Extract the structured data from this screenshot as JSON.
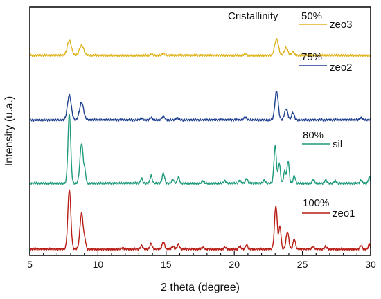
{
  "chart_data": {
    "type": "line",
    "title": "",
    "xlabel": "2 theta (degree)",
    "ylabel": "Intensity (u.a.)",
    "xlim": [
      5,
      30
    ],
    "x_ticks": [
      5,
      10,
      15,
      20,
      25,
      30
    ],
    "ylim": [
      0,
      100
    ],
    "legend_title": "Cristallinity",
    "legend_placement": "right, beside each curve",
    "grid": false,
    "y_ticks_shown": false,
    "series": [
      {
        "name": "zeo3",
        "crystallinity_label": "50%",
        "color": "#e0b41e",
        "baseline": 80.5,
        "peaks": [
          {
            "x": 7.9,
            "height": 6,
            "width": 0.15
          },
          {
            "x": 8.8,
            "height": 4,
            "width": 0.16
          },
          {
            "x": 13.9,
            "height": 0.5,
            "width": 0.1
          },
          {
            "x": 14.8,
            "height": 0.7,
            "width": 0.1
          },
          {
            "x": 20.8,
            "height": 0.6,
            "width": 0.1
          },
          {
            "x": 23.1,
            "height": 6.5,
            "width": 0.14
          },
          {
            "x": 23.8,
            "height": 3,
            "width": 0.13
          },
          {
            "x": 24.3,
            "height": 1.5,
            "width": 0.1
          }
        ]
      },
      {
        "name": "zeo2",
        "crystallinity_label": "75%",
        "color": "#1f3f8f",
        "baseline": 54.5,
        "peaks": [
          {
            "x": 7.9,
            "height": 10,
            "width": 0.14
          },
          {
            "x": 8.8,
            "height": 7,
            "width": 0.15
          },
          {
            "x": 13.2,
            "height": 0.8,
            "width": 0.08
          },
          {
            "x": 13.9,
            "height": 1,
            "width": 0.09
          },
          {
            "x": 14.8,
            "height": 1.5,
            "width": 0.1
          },
          {
            "x": 15.8,
            "height": 0.8,
            "width": 0.1
          },
          {
            "x": 20.8,
            "height": 1,
            "width": 0.1
          },
          {
            "x": 23.1,
            "height": 11.5,
            "width": 0.12
          },
          {
            "x": 23.8,
            "height": 4.5,
            "width": 0.12
          },
          {
            "x": 24.3,
            "height": 3,
            "width": 0.1
          },
          {
            "x": 29.3,
            "height": 0.8,
            "width": 0.1
          }
        ]
      },
      {
        "name": "sil",
        "crystallinity_label": "80%",
        "color": "#1f9a7c",
        "baseline": 29,
        "peaks": [
          {
            "x": 7.9,
            "height": 28,
            "width": 0.1
          },
          {
            "x": 8.8,
            "height": 16,
            "width": 0.12
          },
          {
            "x": 9.05,
            "height": 4,
            "width": 0.07
          },
          {
            "x": 13.2,
            "height": 2,
            "width": 0.07
          },
          {
            "x": 13.9,
            "height": 3,
            "width": 0.08
          },
          {
            "x": 14.8,
            "height": 4,
            "width": 0.09
          },
          {
            "x": 15.5,
            "height": 1.5,
            "width": 0.08
          },
          {
            "x": 15.9,
            "height": 2.5,
            "width": 0.08
          },
          {
            "x": 17.7,
            "height": 1,
            "width": 0.08
          },
          {
            "x": 19.3,
            "height": 1,
            "width": 0.08
          },
          {
            "x": 20.4,
            "height": 1.2,
            "width": 0.08
          },
          {
            "x": 20.9,
            "height": 2,
            "width": 0.08
          },
          {
            "x": 22.2,
            "height": 1.2,
            "width": 0.08
          },
          {
            "x": 23.0,
            "height": 15,
            "width": 0.09
          },
          {
            "x": 23.3,
            "height": 8,
            "width": 0.08
          },
          {
            "x": 23.7,
            "height": 5,
            "width": 0.08
          },
          {
            "x": 23.95,
            "height": 9,
            "width": 0.08
          },
          {
            "x": 24.4,
            "height": 3,
            "width": 0.08
          },
          {
            "x": 25.8,
            "height": 1.5,
            "width": 0.08
          },
          {
            "x": 26.7,
            "height": 1.5,
            "width": 0.08
          },
          {
            "x": 27.4,
            "height": 1,
            "width": 0.08
          },
          {
            "x": 29.3,
            "height": 1.2,
            "width": 0.08
          },
          {
            "x": 29.9,
            "height": 2.5,
            "width": 0.07
          }
        ]
      },
      {
        "name": "zeo1",
        "crystallinity_label": "100%",
        "color": "#b81c14",
        "baseline": 2.5,
        "peaks": [
          {
            "x": 7.9,
            "height": 24,
            "width": 0.11
          },
          {
            "x": 8.8,
            "height": 14.5,
            "width": 0.12
          },
          {
            "x": 9.05,
            "height": 3,
            "width": 0.07
          },
          {
            "x": 11.8,
            "height": 0.6,
            "width": 0.08
          },
          {
            "x": 13.2,
            "height": 1.5,
            "width": 0.08
          },
          {
            "x": 13.9,
            "height": 2.3,
            "width": 0.08
          },
          {
            "x": 14.8,
            "height": 3,
            "width": 0.09
          },
          {
            "x": 15.5,
            "height": 1.2,
            "width": 0.08
          },
          {
            "x": 15.9,
            "height": 2,
            "width": 0.08
          },
          {
            "x": 17.7,
            "height": 0.8,
            "width": 0.08
          },
          {
            "x": 19.3,
            "height": 0.8,
            "width": 0.08
          },
          {
            "x": 20.4,
            "height": 1.2,
            "width": 0.08
          },
          {
            "x": 20.9,
            "height": 1.8,
            "width": 0.08
          },
          {
            "x": 23.05,
            "height": 17.5,
            "width": 0.1
          },
          {
            "x": 23.35,
            "height": 9,
            "width": 0.08
          },
          {
            "x": 23.9,
            "height": 7,
            "width": 0.1
          },
          {
            "x": 24.4,
            "height": 4,
            "width": 0.09
          },
          {
            "x": 25.8,
            "height": 1,
            "width": 0.08
          },
          {
            "x": 26.7,
            "height": 1,
            "width": 0.08
          },
          {
            "x": 29.3,
            "height": 1.5,
            "width": 0.08
          },
          {
            "x": 29.9,
            "height": 2,
            "width": 0.07
          }
        ]
      }
    ]
  }
}
